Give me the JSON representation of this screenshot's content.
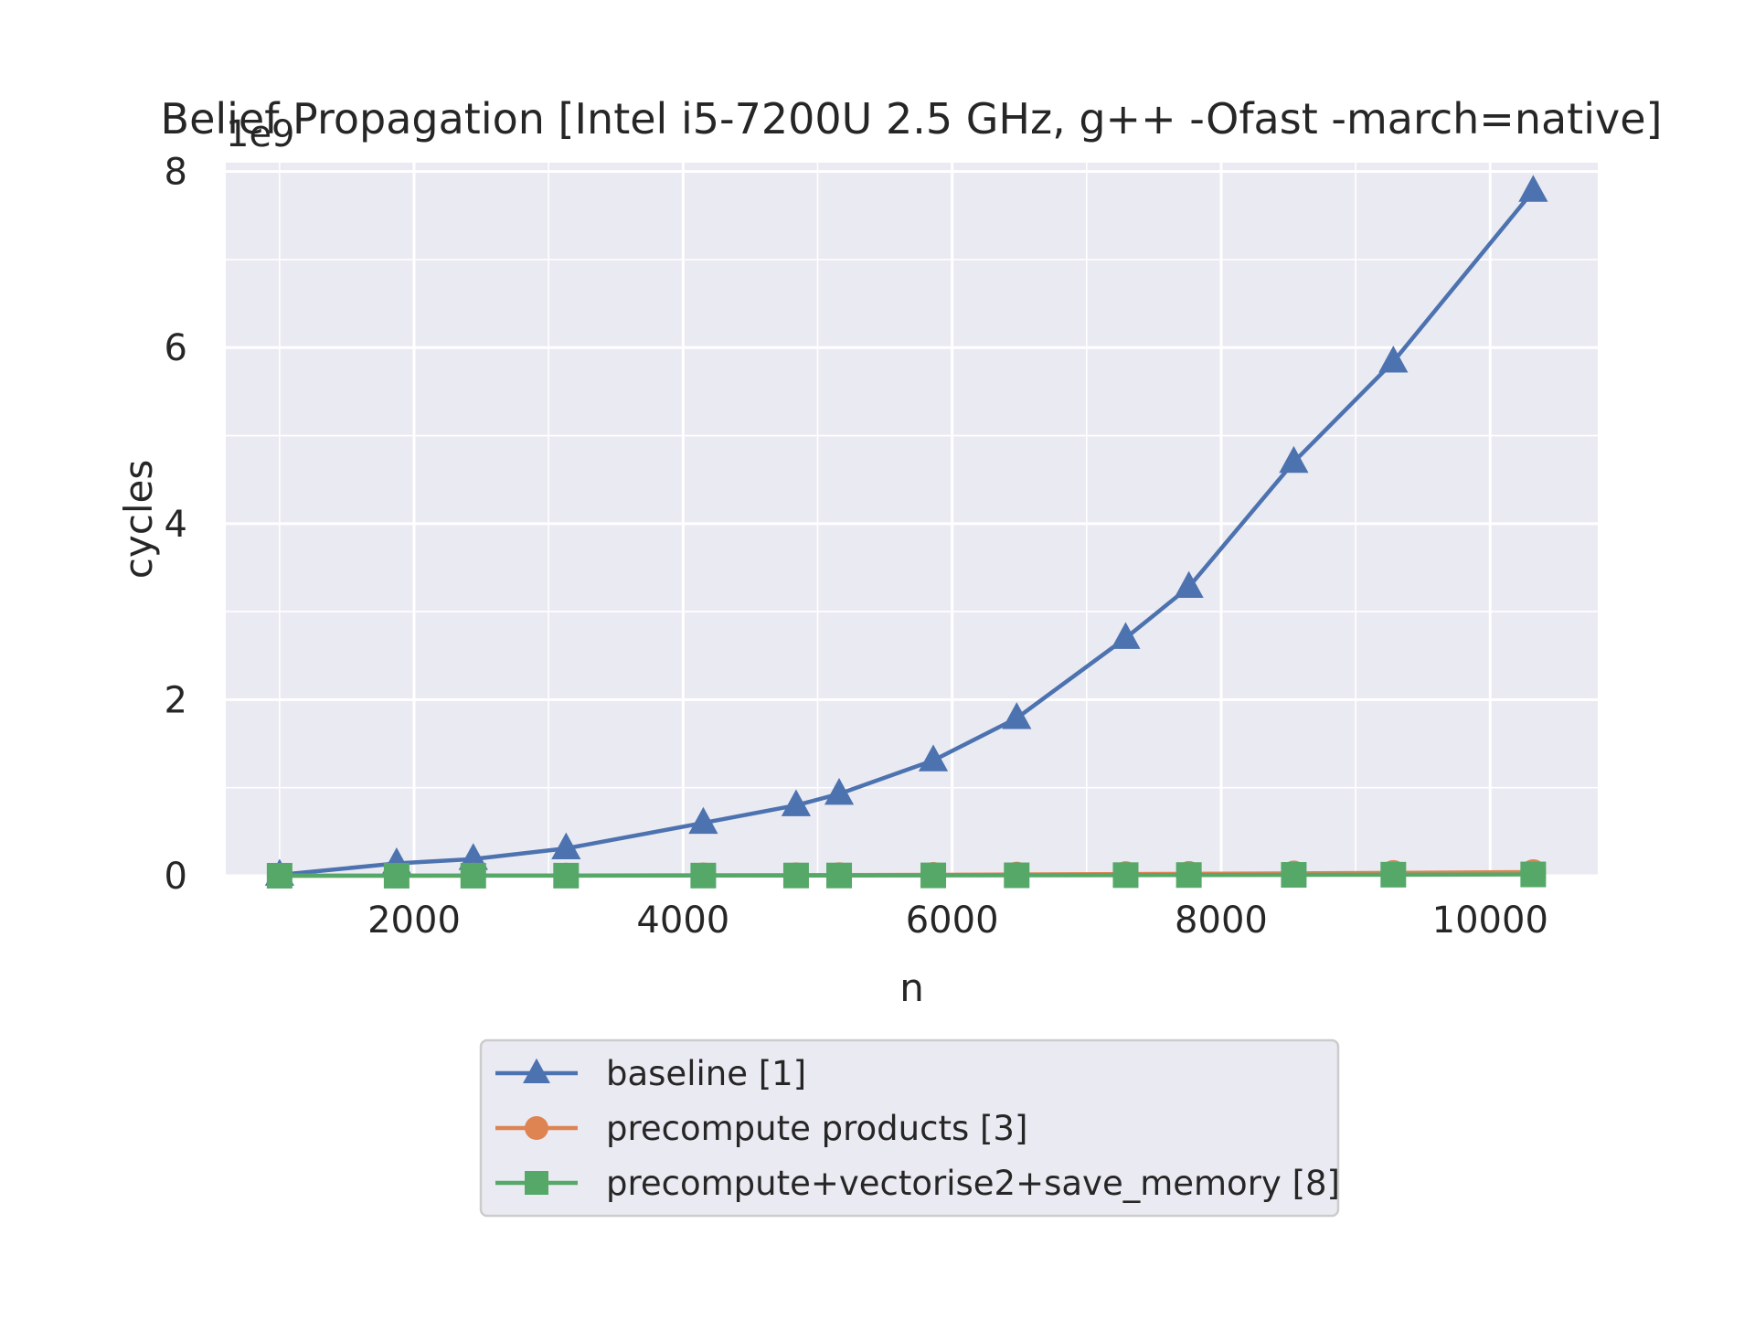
{
  "chart_data": {
    "type": "line",
    "title": "Belief Propagation [Intel i5-7200U 2.5 GHz, g++ -Ofast -march=native]",
    "xlabel": "n",
    "ylabel": "cycles",
    "y_offset_label": "1e9",
    "y_scale": 1000000000,
    "xlim": [
      600,
      10800
    ],
    "ylim": [
      0,
      8.1
    ],
    "xticks": [
      2000,
      4000,
      6000,
      8000,
      10000
    ],
    "xticks_minor": [
      1000,
      3000,
      5000,
      7000,
      9000
    ],
    "yticks": [
      0,
      2,
      4,
      6,
      8
    ],
    "yticks_minor": [
      1,
      3,
      5,
      7
    ],
    "grid": true,
    "background": "#eaeaf2",
    "legend_position": "below",
    "x": [
      1000,
      1870,
      2440,
      3130,
      4150,
      4840,
      5160,
      5860,
      6480,
      7290,
      7760,
      8540,
      9280,
      10320
    ],
    "series": [
      {
        "name": "baseline [1]",
        "color": "#4c72b0",
        "marker": "triangle",
        "values": [
          0.01,
          0.14,
          0.19,
          0.31,
          0.6,
          0.8,
          0.93,
          1.31,
          1.79,
          2.7,
          3.28,
          4.7,
          5.84,
          7.78
        ]
      },
      {
        "name": "precompute products [3]",
        "color": "#dd8452",
        "marker": "circle",
        "values": [
          0.0005,
          0.001,
          0.002,
          0.003,
          0.005,
          0.007,
          0.008,
          0.011,
          0.014,
          0.019,
          0.022,
          0.027,
          0.033,
          0.042
        ]
      },
      {
        "name": "precompute+vectorise2+save_memory [8]",
        "color": "#55a868",
        "marker": "square",
        "values": [
          0.0003,
          0.0005,
          0.0008,
          0.0012,
          0.002,
          0.003,
          0.003,
          0.004,
          0.005,
          0.007,
          0.008,
          0.01,
          0.012,
          0.015
        ]
      }
    ]
  }
}
